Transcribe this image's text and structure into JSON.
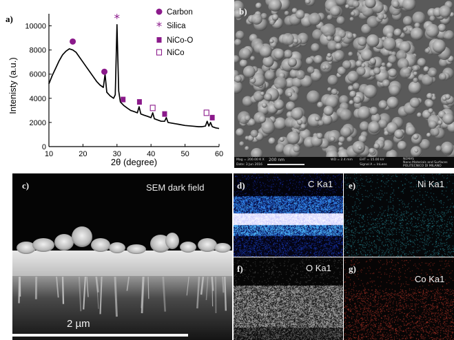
{
  "panel_labels": {
    "a": "a)",
    "b": "b)",
    "c": "c)",
    "d": "d)",
    "e": "e)",
    "f": "f)",
    "g": "g)"
  },
  "xrd": {
    "ylabel": "Intenisty (a.u.)",
    "xlabel": "2θ (degree)",
    "x_ticks": [
      "10",
      "20",
      "30",
      "40",
      "50",
      "60"
    ],
    "y_ticks": [
      "0",
      "2000",
      "4000",
      "6000",
      "8000",
      "10000"
    ],
    "legend": [
      {
        "label": "Carbon",
        "marker": "filled-circle"
      },
      {
        "label": "Silica",
        "marker": "asterisk"
      },
      {
        "label": "NiCo-O",
        "marker": "filled-square"
      },
      {
        "label": "NiCo",
        "marker": "open-square"
      }
    ],
    "marker_color": "#8b1a8b"
  },
  "chart_data": {
    "type": "line",
    "xlabel": "2θ (degree)",
    "ylabel": "Intenisty (a.u.)",
    "xlim": [
      10,
      60
    ],
    "ylim": [
      0,
      11000
    ],
    "series": [
      {
        "x": [
          10,
          11,
          12,
          13,
          14,
          15,
          16,
          17,
          18,
          19,
          20,
          21,
          22,
          23,
          24,
          25,
          26,
          26.5,
          27,
          28,
          29,
          29.5,
          30,
          30.5,
          31,
          32,
          33,
          34,
          35,
          36,
          36.5,
          37,
          38,
          39,
          40,
          40.5,
          41,
          42,
          43,
          44,
          44.5,
          45,
          46,
          48,
          50,
          52,
          54,
          55,
          56,
          56.5,
          57,
          57.5,
          58,
          59,
          60
        ],
        "y": [
          5200,
          5900,
          6500,
          7100,
          7600,
          7900,
          8100,
          8000,
          7800,
          7400,
          7000,
          6600,
          6200,
          5800,
          5400,
          5100,
          4900,
          6000,
          4500,
          4200,
          4000,
          4300,
          10100,
          4600,
          3700,
          3400,
          3200,
          3000,
          2900,
          2800,
          3300,
          2700,
          2600,
          2500,
          2400,
          2800,
          2300,
          2200,
          2100,
          2100,
          2400,
          2000,
          1950,
          1850,
          1750,
          1700,
          1650,
          1650,
          1700,
          2100,
          1700,
          2000,
          1650,
          1550,
          1500
        ]
      }
    ],
    "markers": [
      {
        "type": "Carbon",
        "x": 17,
        "y": 8700
      },
      {
        "type": "Carbon",
        "x": 26.3,
        "y": 6200
      },
      {
        "type": "Silica",
        "x": 30,
        "y": 10700
      },
      {
        "type": "NiCo-O",
        "x": 31.8,
        "y": 3900
      },
      {
        "type": "NiCo-O",
        "x": 36.6,
        "y": 3700
      },
      {
        "type": "NiCo",
        "x": 40.5,
        "y": 3200
      },
      {
        "type": "NiCo-O",
        "x": 44,
        "y": 2700
      },
      {
        "type": "NiCo",
        "x": 56.3,
        "y": 2800
      },
      {
        "type": "NiCo-O",
        "x": 58,
        "y": 2400
      }
    ]
  },
  "sem_b": {
    "info": {
      "mag": "Mag = 200.00 K X",
      "scale": "200 nm",
      "wd": "WD = 2.4 mm",
      "eht": "EHT = 15.00 kV",
      "signal": "Signal A = InLens",
      "date": "Date: 3 Jun 2016",
      "brand": "NEMAS",
      "inst1": "Nano Materials and Surfaces",
      "inst2": "POLITECNICO DI MILANO"
    }
  },
  "sem_c": {
    "title": "SEM dark field",
    "scale": "2 µm"
  },
  "maps": {
    "d": "C Ka1",
    "e": "Ni Ka1",
    "f": "O Ka1",
    "g": "Co Ka1"
  }
}
